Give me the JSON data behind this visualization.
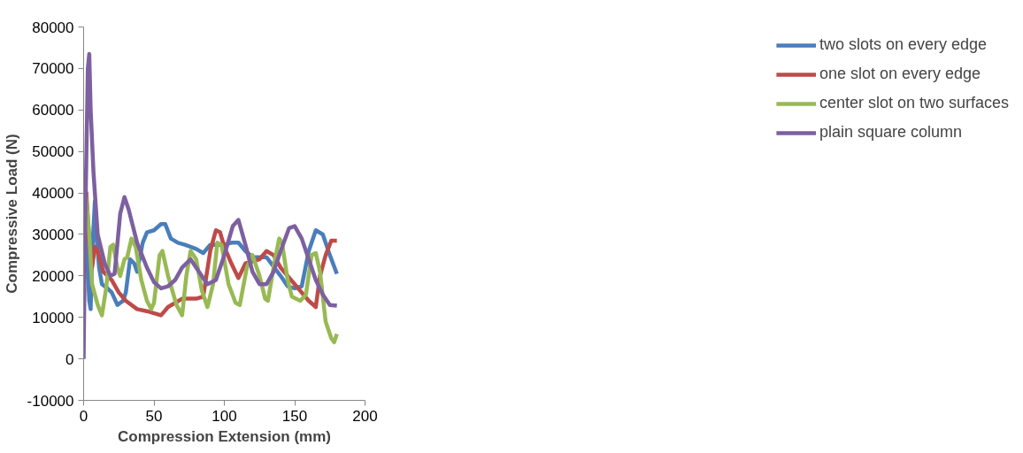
{
  "chart_data": {
    "type": "line",
    "xlabel": "Compression Extension (mm)",
    "ylabel": "Compressive Load (N)",
    "xlim": [
      0,
      200
    ],
    "xticks": [
      0,
      50,
      100,
      150,
      200
    ],
    "ylim": [
      -10000,
      80000
    ],
    "yticks": [
      -10000,
      0,
      10000,
      20000,
      30000,
      40000,
      50000,
      60000,
      70000,
      80000
    ],
    "grid": false,
    "legend": "right",
    "marker": "none",
    "line_style": "solid",
    "series": [
      {
        "name": "two slots on every edge",
        "color": "#4a7ebb",
        "x": [
          0,
          2,
          4,
          5,
          6,
          8,
          9,
          11,
          13,
          17,
          20,
          24,
          28,
          30,
          33,
          36,
          38,
          42,
          45,
          50,
          55,
          58,
          62,
          67,
          72,
          80,
          85,
          90,
          100,
          105,
          110,
          115,
          120,
          130,
          140,
          145,
          150,
          155,
          160,
          165,
          170,
          175,
          180
        ],
        "values": [
          20000,
          30000,
          14000,
          12000,
          25000,
          38000,
          30000,
          22000,
          18000,
          17000,
          16000,
          13000,
          14000,
          16000,
          24000,
          23000,
          21000,
          28000,
          30500,
          31000,
          32500,
          32500,
          29000,
          28000,
          27500,
          26500,
          25500,
          27500,
          27500,
          28000,
          28000,
          26000,
          24500,
          24500,
          20000,
          17500,
          17000,
          17500,
          26000,
          31000,
          30000,
          25000,
          20500
        ]
      },
      {
        "name": "one slot on every edge",
        "color": "#be4b48",
        "x": [
          0,
          2,
          4,
          6,
          8,
          10,
          14,
          20,
          25,
          30,
          38,
          45,
          55,
          60,
          70,
          80,
          85,
          90,
          94,
          97,
          100,
          105,
          110,
          115,
          120,
          125,
          130,
          135,
          140,
          150,
          160,
          165,
          168,
          172,
          176,
          180
        ],
        "values": [
          25000,
          40000,
          28000,
          22000,
          27000,
          26000,
          21000,
          19000,
          16000,
          14000,
          12000,
          11500,
          10500,
          12500,
          14500,
          14500,
          15000,
          26000,
          31000,
          30500,
          27000,
          23000,
          19500,
          23000,
          23500,
          24000,
          26000,
          25000,
          22000,
          18000,
          14000,
          12500,
          20000,
          25000,
          28500,
          28500
        ]
      },
      {
        "name": "center slot on two surfaces",
        "color": "#98b954",
        "x": [
          0,
          2,
          4,
          6,
          10,
          13,
          16,
          19,
          21,
          24,
          26,
          29,
          31,
          34,
          37,
          41,
          45,
          48,
          50,
          54,
          56,
          60,
          66,
          70,
          73,
          76,
          80,
          84,
          88,
          92,
          95,
          98,
          103,
          108,
          111,
          116,
          120,
          125,
          129,
          131,
          136,
          139,
          141,
          145,
          148,
          154,
          158,
          162,
          165,
          168,
          172,
          176,
          178,
          180
        ],
        "values": [
          46000,
          38000,
          30000,
          18000,
          13000,
          10500,
          17000,
          27000,
          27500,
          22000,
          20000,
          24000,
          24500,
          29000,
          27000,
          19000,
          14000,
          12000,
          13500,
          25000,
          26000,
          20000,
          13000,
          10500,
          20000,
          26000,
          24000,
          16500,
          12500,
          18000,
          28000,
          27500,
          18000,
          13500,
          13000,
          22000,
          25000,
          20000,
          14500,
          14000,
          24000,
          29000,
          28000,
          19000,
          15000,
          14000,
          15500,
          25000,
          25500,
          21000,
          9000,
          5000,
          4000,
          6000
        ]
      },
      {
        "name": "plain square column",
        "color": "#7d60a0",
        "x": [
          0,
          1,
          3,
          4,
          5,
          7,
          10,
          15,
          19,
          22,
          26,
          29,
          32,
          38,
          45,
          50,
          55,
          60,
          65,
          70,
          76,
          82,
          88,
          94,
          100,
          106,
          110,
          115,
          120,
          125,
          130,
          135,
          140,
          146,
          150,
          155,
          160,
          165,
          170,
          175,
          180
        ],
        "values": [
          0,
          30000,
          70000,
          73500,
          60000,
          45000,
          30000,
          23000,
          20000,
          20500,
          35000,
          39000,
          36000,
          28000,
          22000,
          18500,
          17000,
          17500,
          19000,
          22000,
          24000,
          21000,
          18000,
          19000,
          25000,
          32000,
          33500,
          27500,
          21000,
          18000,
          18000,
          21000,
          26000,
          31500,
          32000,
          29000,
          24000,
          19000,
          15500,
          13000,
          12800
        ]
      }
    ]
  }
}
